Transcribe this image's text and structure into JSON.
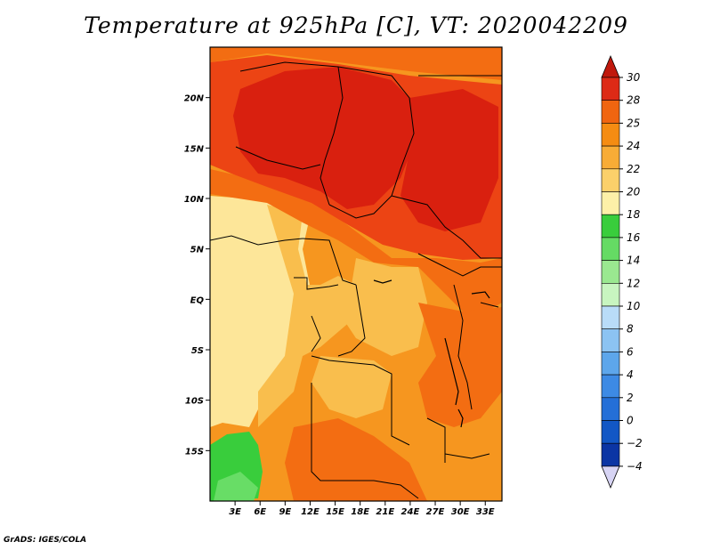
{
  "title": "Temperature at 925hPa [C], VT: 2020042209",
  "credit": "GrADS: IGES/COLA",
  "map": {
    "lon_range": [
      0,
      35
    ],
    "lat_range": [
      -20,
      25
    ],
    "lat_ticks": [
      {
        "value": 20,
        "label": "20N"
      },
      {
        "value": 15,
        "label": "15N"
      },
      {
        "value": 10,
        "label": "10N"
      },
      {
        "value": 5,
        "label": "5N"
      },
      {
        "value": 0,
        "label": "EQ"
      },
      {
        "value": -5,
        "label": "5S"
      },
      {
        "value": -10,
        "label": "10S"
      },
      {
        "value": -15,
        "label": "15S"
      }
    ],
    "lon_ticks": [
      {
        "value": 3,
        "label": "3E"
      },
      {
        "value": 6,
        "label": "6E"
      },
      {
        "value": 9,
        "label": "9E"
      },
      {
        "value": 12,
        "label": "12E"
      },
      {
        "value": 15,
        "label": "15E"
      },
      {
        "value": 18,
        "label": "18E"
      },
      {
        "value": 21,
        "label": "21E"
      },
      {
        "value": 24,
        "label": "24E"
      },
      {
        "value": 27,
        "label": "27E"
      },
      {
        "value": 30,
        "label": "30E"
      },
      {
        "value": 33,
        "label": "33E"
      }
    ]
  },
  "colorbar": {
    "labels": [
      "30",
      "28",
      "25",
      "24",
      "22",
      "20",
      "18",
      "16",
      "14",
      "12",
      "10",
      "8",
      "6",
      "4",
      "2",
      "0",
      "−2",
      "−4"
    ],
    "colors": [
      "#dd2a16",
      "#f06510",
      "#f58c12",
      "#f8ac36",
      "#fbd06a",
      "#fdf0a8",
      "#39cd3c",
      "#65db64",
      "#9ae890",
      "#c8f5c0",
      "#b9dcf8",
      "#8cc3f2",
      "#5da6eb",
      "#3d8ae4",
      "#246fd7",
      "#1257c5",
      "#0b35a4",
      "#06127c"
    ],
    "top_triangle_color": "#c0180c",
    "bottom_triangle_color": "#d7d4f4"
  },
  "palette": {
    "t30": "#d9200f",
    "t28": "#ec4414",
    "t25": "#f36d12",
    "t24": "#f6961f",
    "t22": "#f9be4d",
    "t20": "#fde699",
    "t18": "#39cd3c",
    "t16": "#68dd66"
  }
}
